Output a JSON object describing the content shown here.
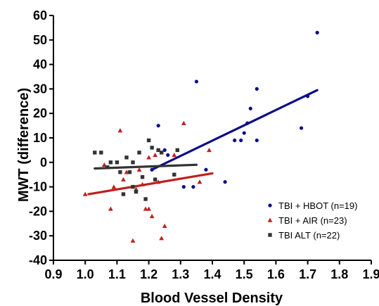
{
  "chart_data": {
    "type": "scatter",
    "xlabel": "Blood Vessel Density",
    "ylabel": "MWT (difference)",
    "xlim": [
      0.9,
      1.9
    ],
    "ylim": [
      -40,
      60
    ],
    "xticks": [
      "0.9",
      "1.0",
      "1.1",
      "1.2",
      "1.3",
      "1.4",
      "1.5",
      "1.6",
      "1.7",
      "1.8",
      "1.9"
    ],
    "yticks": [
      "-40",
      "-30",
      "-20",
      "-10",
      "0",
      "10",
      "20",
      "30",
      "40",
      "50",
      "60"
    ],
    "grid": false,
    "legend_position": "bottom-right",
    "series": [
      {
        "name": "TBI + HBOT (n=19)",
        "color": "#0d0d8a",
        "marker": "circle",
        "points": [
          [
            1.21,
            -3
          ],
          [
            1.23,
            15
          ],
          [
            1.25,
            5
          ],
          [
            1.26,
            3
          ],
          [
            1.31,
            -10
          ],
          [
            1.34,
            -10
          ],
          [
            1.35,
            33
          ],
          [
            1.38,
            -3
          ],
          [
            1.44,
            -8
          ],
          [
            1.47,
            9
          ],
          [
            1.49,
            9
          ],
          [
            1.5,
            12
          ],
          [
            1.51,
            16
          ],
          [
            1.52,
            22
          ],
          [
            1.54,
            30
          ],
          [
            1.54,
            9
          ],
          [
            1.68,
            14
          ],
          [
            1.7,
            27
          ],
          [
            1.73,
            53
          ]
        ],
        "fit": [
          [
            1.21,
            -3
          ],
          [
            1.73,
            29.5
          ]
        ]
      },
      {
        "name": "TBI + AIR (n=23)",
        "color": "#c0201c",
        "marker": "triangle",
        "points": [
          [
            1.0,
            -13
          ],
          [
            1.06,
            -1
          ],
          [
            1.08,
            -19
          ],
          [
            1.09,
            -10
          ],
          [
            1.11,
            13
          ],
          [
            1.12,
            -7
          ],
          [
            1.13,
            -4
          ],
          [
            1.15,
            -32
          ],
          [
            1.16,
            -11
          ],
          [
            1.17,
            -3
          ],
          [
            1.18,
            -9
          ],
          [
            1.19,
            -19
          ],
          [
            1.2,
            -19
          ],
          [
            1.2,
            2
          ],
          [
            1.21,
            -22
          ],
          [
            1.22,
            3
          ],
          [
            1.23,
            -8
          ],
          [
            1.24,
            -31
          ],
          [
            1.25,
            -26
          ],
          [
            1.28,
            3
          ],
          [
            1.31,
            16
          ],
          [
            1.36,
            -8
          ],
          [
            1.39,
            5
          ]
        ],
        "fit": [
          [
            1.01,
            -13
          ],
          [
            1.4,
            -4.5
          ]
        ]
      },
      {
        "name": "TBI ALT (n=22)",
        "color": "#333333",
        "marker": "square",
        "points": [
          [
            1.03,
            4
          ],
          [
            1.05,
            4
          ],
          [
            1.07,
            -2
          ],
          [
            1.08,
            0
          ],
          [
            1.1,
            0
          ],
          [
            1.11,
            -4
          ],
          [
            1.12,
            -13
          ],
          [
            1.13,
            2
          ],
          [
            1.14,
            -4
          ],
          [
            1.15,
            0
          ],
          [
            1.15,
            -10
          ],
          [
            1.16,
            -12
          ],
          [
            1.17,
            4
          ],
          [
            1.18,
            -6
          ],
          [
            1.19,
            -15
          ],
          [
            1.2,
            9
          ],
          [
            1.21,
            6
          ],
          [
            1.22,
            -7
          ],
          [
            1.23,
            5
          ],
          [
            1.24,
            4
          ],
          [
            1.28,
            -5
          ],
          [
            1.29,
            5
          ]
        ],
        "fit": [
          [
            1.03,
            -2.5
          ],
          [
            1.35,
            -1
          ]
        ]
      }
    ]
  }
}
